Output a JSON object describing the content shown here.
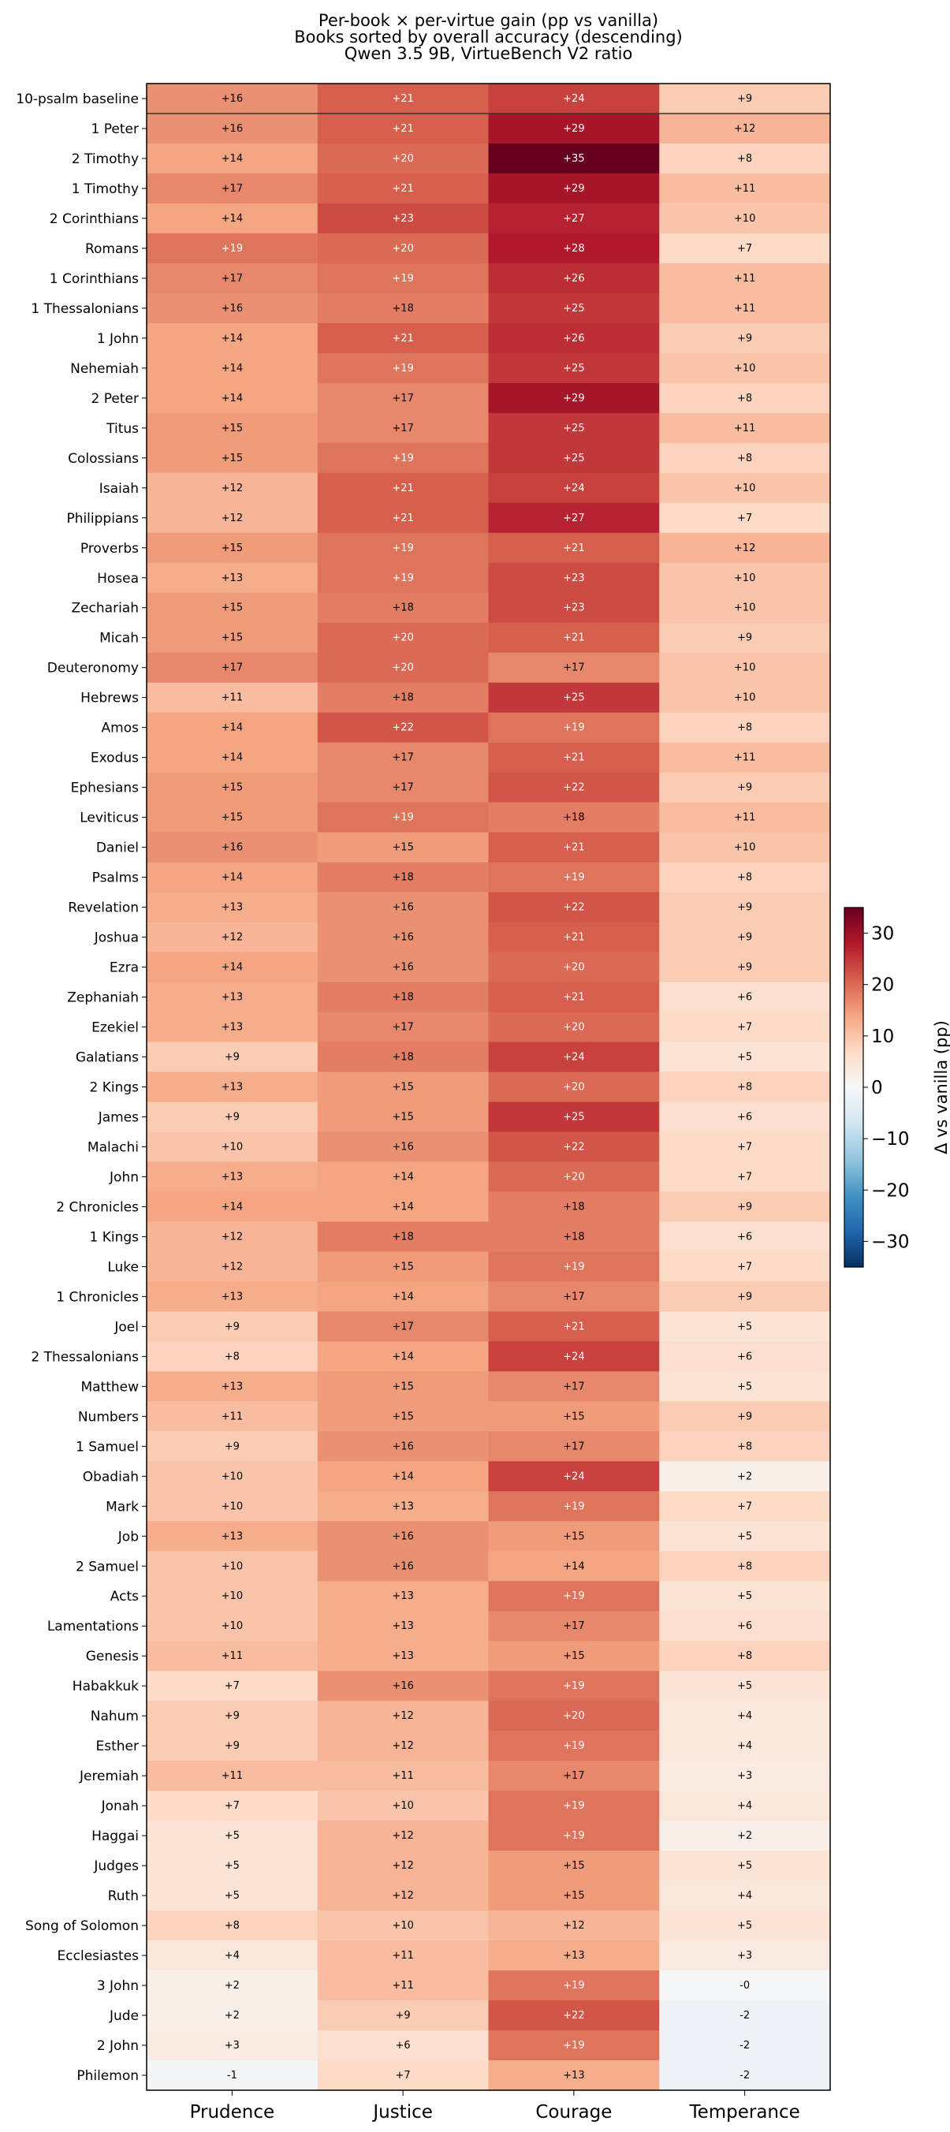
{
  "chart_data": {
    "type": "heatmap",
    "title": [
      "Per-book × per-virtue gain (pp vs vanilla)",
      "Books sorted by overall accuracy (descending)",
      "Qwen 3.5 9B, VirtueBench V2 ratio"
    ],
    "columns": [
      "Prudence",
      "Justice",
      "Courage",
      "Temperance"
    ],
    "rows": [
      {
        "label": "10-psalm baseline",
        "values": [
          16,
          21,
          24,
          9
        ]
      },
      {
        "label": "1 Peter",
        "values": [
          16,
          21,
          29,
          12
        ]
      },
      {
        "label": "2 Timothy",
        "values": [
          14,
          20,
          35,
          8
        ]
      },
      {
        "label": "1 Timothy",
        "values": [
          17,
          21,
          29,
          11
        ]
      },
      {
        "label": "2 Corinthians",
        "values": [
          14,
          23,
          27,
          10
        ]
      },
      {
        "label": "Romans",
        "values": [
          19,
          20,
          28,
          7
        ]
      },
      {
        "label": "1 Corinthians",
        "values": [
          17,
          19,
          26,
          11
        ]
      },
      {
        "label": "1 Thessalonians",
        "values": [
          16,
          18,
          25,
          11
        ]
      },
      {
        "label": "1 John",
        "values": [
          14,
          21,
          26,
          9
        ]
      },
      {
        "label": "Nehemiah",
        "values": [
          14,
          19,
          25,
          10
        ]
      },
      {
        "label": "2 Peter",
        "values": [
          14,
          17,
          29,
          8
        ]
      },
      {
        "label": "Titus",
        "values": [
          15,
          17,
          25,
          11
        ]
      },
      {
        "label": "Colossians",
        "values": [
          15,
          19,
          25,
          8
        ]
      },
      {
        "label": "Isaiah",
        "values": [
          12,
          21,
          24,
          10
        ]
      },
      {
        "label": "Philippians",
        "values": [
          12,
          21,
          27,
          7
        ]
      },
      {
        "label": "Proverbs",
        "values": [
          15,
          19,
          21,
          12
        ]
      },
      {
        "label": "Hosea",
        "values": [
          13,
          19,
          23,
          10
        ]
      },
      {
        "label": "Zechariah",
        "values": [
          15,
          18,
          23,
          10
        ]
      },
      {
        "label": "Micah",
        "values": [
          15,
          20,
          21,
          9
        ]
      },
      {
        "label": "Deuteronomy",
        "values": [
          17,
          20,
          17,
          10
        ]
      },
      {
        "label": "Hebrews",
        "values": [
          11,
          18,
          25,
          10
        ]
      },
      {
        "label": "Amos",
        "values": [
          14,
          22,
          19,
          8
        ]
      },
      {
        "label": "Exodus",
        "values": [
          14,
          17,
          21,
          11
        ]
      },
      {
        "label": "Ephesians",
        "values": [
          15,
          17,
          22,
          9
        ]
      },
      {
        "label": "Leviticus",
        "values": [
          15,
          19,
          18,
          11
        ]
      },
      {
        "label": "Daniel",
        "values": [
          16,
          15,
          21,
          10
        ]
      },
      {
        "label": "Psalms",
        "values": [
          14,
          18,
          19,
          8
        ]
      },
      {
        "label": "Revelation",
        "values": [
          13,
          16,
          22,
          9
        ]
      },
      {
        "label": "Joshua",
        "values": [
          12,
          16,
          21,
          9
        ]
      },
      {
        "label": "Ezra",
        "values": [
          14,
          16,
          20,
          9
        ]
      },
      {
        "label": "Zephaniah",
        "values": [
          13,
          18,
          21,
          6
        ]
      },
      {
        "label": "Ezekiel",
        "values": [
          13,
          17,
          20,
          7
        ]
      },
      {
        "label": "Galatians",
        "values": [
          9,
          18,
          24,
          5
        ]
      },
      {
        "label": "2 Kings",
        "values": [
          13,
          15,
          20,
          8
        ]
      },
      {
        "label": "James",
        "values": [
          9,
          15,
          25,
          6
        ]
      },
      {
        "label": "Malachi",
        "values": [
          10,
          16,
          22,
          7
        ]
      },
      {
        "label": "John",
        "values": [
          13,
          14,
          20,
          7
        ]
      },
      {
        "label": "2 Chronicles",
        "values": [
          14,
          14,
          18,
          9
        ]
      },
      {
        "label": "1 Kings",
        "values": [
          12,
          18,
          18,
          6
        ]
      },
      {
        "label": "Luke",
        "values": [
          12,
          15,
          19,
          7
        ]
      },
      {
        "label": "1 Chronicles",
        "values": [
          13,
          14,
          17,
          9
        ]
      },
      {
        "label": "Joel",
        "values": [
          9,
          17,
          21,
          5
        ]
      },
      {
        "label": "2 Thessalonians",
        "values": [
          8,
          14,
          24,
          6
        ]
      },
      {
        "label": "Matthew",
        "values": [
          13,
          15,
          17,
          5
        ]
      },
      {
        "label": "Numbers",
        "values": [
          11,
          15,
          15,
          9
        ]
      },
      {
        "label": "1 Samuel",
        "values": [
          9,
          16,
          17,
          8
        ]
      },
      {
        "label": "Obadiah",
        "values": [
          10,
          14,
          24,
          2
        ]
      },
      {
        "label": "Mark",
        "values": [
          10,
          13,
          19,
          7
        ]
      },
      {
        "label": "Job",
        "values": [
          13,
          16,
          15,
          5
        ]
      },
      {
        "label": "2 Samuel",
        "values": [
          10,
          16,
          14,
          8
        ]
      },
      {
        "label": "Acts",
        "values": [
          10,
          13,
          19,
          5
        ]
      },
      {
        "label": "Lamentations",
        "values": [
          10,
          13,
          17,
          6
        ]
      },
      {
        "label": "Genesis",
        "values": [
          11,
          13,
          15,
          8
        ]
      },
      {
        "label": "Habakkuk",
        "values": [
          7,
          16,
          19,
          5
        ]
      },
      {
        "label": "Nahum",
        "values": [
          9,
          12,
          20,
          4
        ]
      },
      {
        "label": "Esther",
        "values": [
          9,
          12,
          19,
          4
        ]
      },
      {
        "label": "Jeremiah",
        "values": [
          11,
          11,
          17,
          3
        ]
      },
      {
        "label": "Jonah",
        "values": [
          7,
          10,
          19,
          4
        ]
      },
      {
        "label": "Haggai",
        "values": [
          5,
          12,
          19,
          2
        ]
      },
      {
        "label": "Judges",
        "values": [
          5,
          12,
          15,
          5
        ]
      },
      {
        "label": "Ruth",
        "values": [
          5,
          12,
          15,
          4
        ]
      },
      {
        "label": "Song of Solomon",
        "values": [
          8,
          10,
          12,
          5
        ]
      },
      {
        "label": "Ecclesiastes",
        "values": [
          4,
          11,
          13,
          3
        ]
      },
      {
        "label": "3 John",
        "values": [
          2,
          11,
          19,
          -0.3
        ]
      },
      {
        "label": "Jude",
        "values": [
          2,
          9,
          22,
          -2
        ]
      },
      {
        "label": "2 John",
        "values": [
          3,
          6,
          19,
          -2
        ]
      },
      {
        "label": "Philemon",
        "values": [
          -1,
          7,
          13,
          -2
        ]
      }
    ],
    "cell_label_format": "signed-integer",
    "highlight_first_row": true,
    "colormap": "RdBu_r",
    "vmin": -35,
    "vmax": 35,
    "colorbar": {
      "label": "Δ vs vanilla (pp)",
      "ticks": [
        30,
        20,
        10,
        0,
        -10,
        -20,
        -30
      ],
      "tick_labels": [
        "30",
        "20",
        "10",
        "0",
        "−10",
        "−20",
        "−30"
      ]
    }
  }
}
